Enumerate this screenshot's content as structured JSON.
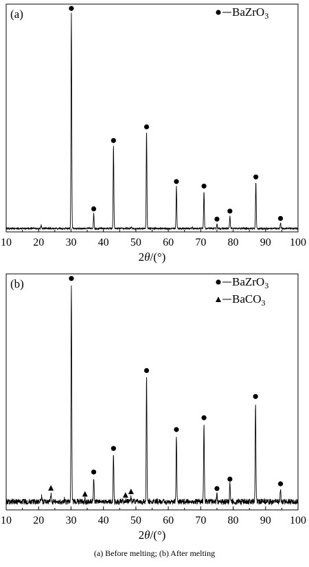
{
  "caption": "(a) Before melting; (b) After melting",
  "chart_data": [
    {
      "type": "line",
      "panel_label": "(a)",
      "xlabel": "2θ/(°)",
      "ylabel": "",
      "xlim": [
        10,
        100
      ],
      "ylim": [
        0,
        100
      ],
      "x_ticks": [
        10,
        20,
        30,
        40,
        50,
        60,
        70,
        80,
        90,
        100
      ],
      "legend_position": "top-right",
      "legend": [
        {
          "marker": "circle",
          "label": "BaZrO",
          "sub": "3"
        }
      ],
      "baseline": 1.5,
      "noise_amplitude": 0.35,
      "minor_peaks": [
        {
          "x": 20.8,
          "y": 2.8
        },
        {
          "x": 48.7,
          "y": 2.2
        },
        {
          "x": 67.4,
          "y": 2.1
        }
      ],
      "peaks": [
        {
          "x": 30.1,
          "y": 96,
          "series": "BaZrO3"
        },
        {
          "x": 37.0,
          "y": 8,
          "series": "BaZrO3"
        },
        {
          "x": 43.1,
          "y": 38,
          "series": "BaZrO3"
        },
        {
          "x": 53.3,
          "y": 44,
          "series": "BaZrO3"
        },
        {
          "x": 62.5,
          "y": 20,
          "series": "BaZrO3"
        },
        {
          "x": 71.0,
          "y": 18,
          "series": "BaZrO3"
        },
        {
          "x": 75.0,
          "y": 3.5,
          "series": "BaZrO3"
        },
        {
          "x": 79.0,
          "y": 7,
          "series": "BaZrO3"
        },
        {
          "x": 87.0,
          "y": 22,
          "series": "BaZrO3"
        },
        {
          "x": 94.6,
          "y": 3.8,
          "series": "BaZrO3"
        }
      ]
    },
    {
      "type": "line",
      "panel_label": "(b)",
      "xlabel": "2θ/(°)",
      "ylabel": "",
      "xlim": [
        10,
        100
      ],
      "ylim": [
        0,
        100
      ],
      "x_ticks": [
        10,
        20,
        30,
        40,
        50,
        60,
        70,
        80,
        90,
        100
      ],
      "legend_position": "top-right",
      "legend": [
        {
          "marker": "circle",
          "label": "BaZrO",
          "sub": "3"
        },
        {
          "marker": "triangle",
          "label": "BaCO",
          "sub": "3"
        }
      ],
      "baseline": 3.5,
      "noise_amplitude": 1.2,
      "minor_peaks": [
        {
          "x": 20.9,
          "y": 5.5
        },
        {
          "x": 28.0,
          "y": 4.5
        }
      ],
      "peaks": [
        {
          "x": 30.1,
          "y": 96,
          "series": "BaZrO3"
        },
        {
          "x": 37.0,
          "y": 14,
          "series": "BaZrO3"
        },
        {
          "x": 43.1,
          "y": 24,
          "series": "BaZrO3"
        },
        {
          "x": 53.3,
          "y": 57,
          "series": "BaZrO3"
        },
        {
          "x": 62.5,
          "y": 32,
          "series": "BaZrO3"
        },
        {
          "x": 71.0,
          "y": 37,
          "series": "BaZrO3"
        },
        {
          "x": 75.0,
          "y": 7,
          "series": "BaZrO3"
        },
        {
          "x": 79.0,
          "y": 11,
          "series": "BaZrO3"
        },
        {
          "x": 86.9,
          "y": 46,
          "series": "BaZrO3"
        },
        {
          "x": 94.6,
          "y": 9,
          "series": "BaZrO3"
        },
        {
          "x": 23.8,
          "y": 7,
          "series": "BaCO3"
        },
        {
          "x": 34.3,
          "y": 4.5,
          "series": "BaCO3"
        },
        {
          "x": 46.8,
          "y": 4,
          "series": "BaCO3"
        },
        {
          "x": 48.5,
          "y": 5.5,
          "series": "BaCO3"
        }
      ]
    }
  ]
}
